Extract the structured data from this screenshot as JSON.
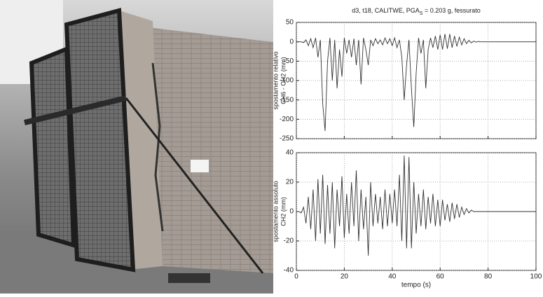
{
  "chart_data": [
    {
      "type": "line",
      "title": "d3, t18, CALITWE, PGA",
      "title_subscript": "S",
      "title_suffix": " = 0.203 g, fessurato",
      "ylabel": [
        "spostamento relativo",
        "CH6 - CH2 (mm)"
      ],
      "xlim": [
        0,
        100
      ],
      "xticks": [
        0,
        20,
        40,
        60,
        80,
        100
      ],
      "show_xtick_labels": false,
      "ylim": [
        -250,
        50
      ],
      "yticks": [
        -250,
        -200,
        -150,
        -100,
        -50,
        0,
        50
      ],
      "grid": true,
      "color": "#333333",
      "x": [
        0,
        1,
        2,
        3,
        4,
        5,
        6,
        7,
        8,
        9,
        10,
        11,
        12,
        13,
        14,
        15,
        16,
        17,
        18,
        19,
        20,
        21,
        22,
        23,
        24,
        25,
        26,
        27,
        28,
        29,
        30,
        31,
        32,
        33,
        34,
        35,
        36,
        37,
        38,
        39,
        40,
        41,
        42,
        43,
        44,
        45,
        46,
        47,
        48,
        49,
        50,
        51,
        52,
        53,
        54,
        55,
        56,
        57,
        58,
        59,
        60,
        61,
        62,
        63,
        64,
        65,
        66,
        67,
        68,
        69,
        70,
        71,
        72,
        73,
        74,
        75,
        76,
        77,
        78,
        79,
        80,
        85,
        90,
        95,
        100
      ],
      "values": [
        0,
        0,
        0,
        -2,
        5,
        -10,
        8,
        -15,
        10,
        -40,
        5,
        -160,
        -230,
        -50,
        10,
        -100,
        5,
        -120,
        -20,
        -90,
        10,
        -30,
        5,
        -40,
        8,
        -60,
        5,
        -110,
        10,
        -20,
        -60,
        5,
        -10,
        8,
        -5,
        5,
        -8,
        10,
        -5,
        8,
        -10,
        10,
        -15,
        5,
        -40,
        -150,
        -60,
        5,
        -120,
        -220,
        -80,
        10,
        -30,
        5,
        -120,
        -20,
        10,
        -15,
        15,
        -20,
        18,
        -20,
        20,
        -18,
        20,
        -15,
        15,
        -12,
        12,
        -8,
        8,
        -5,
        4,
        -3,
        2,
        -1,
        1,
        0,
        0,
        0,
        0,
        0,
        0,
        0,
        0
      ]
    },
    {
      "type": "line",
      "ylabel": [
        "spostamento assoluto",
        "CH2 (mm)"
      ],
      "xlabel": "tempo (s)",
      "xlim": [
        0,
        100
      ],
      "xticks": [
        0,
        20,
        40,
        60,
        80,
        100
      ],
      "show_xtick_labels": true,
      "ylim": [
        -40,
        40
      ],
      "yticks": [
        -40,
        -20,
        0,
        20,
        40
      ],
      "grid": true,
      "color": "#333333",
      "x": [
        0,
        1,
        2,
        3,
        4,
        5,
        6,
        7,
        8,
        9,
        10,
        11,
        12,
        13,
        14,
        15,
        16,
        17,
        18,
        19,
        20,
        21,
        22,
        23,
        24,
        25,
        26,
        27,
        28,
        29,
        30,
        31,
        32,
        33,
        34,
        35,
        36,
        37,
        38,
        39,
        40,
        41,
        42,
        43,
        44,
        45,
        46,
        47,
        48,
        49,
        50,
        51,
        52,
        53,
        54,
        55,
        56,
        57,
        58,
        59,
        60,
        61,
        62,
        63,
        64,
        65,
        66,
        67,
        68,
        69,
        70,
        71,
        72,
        73,
        74,
        75,
        80,
        85,
        90,
        95,
        100
      ],
      "values": [
        0,
        0,
        -1,
        3,
        -8,
        10,
        -12,
        15,
        -20,
        22,
        -15,
        25,
        -22,
        18,
        -15,
        20,
        -25,
        15,
        -10,
        24,
        -18,
        12,
        -15,
        20,
        -10,
        28,
        -20,
        15,
        -12,
        10,
        -30,
        20,
        -10,
        12,
        -8,
        10,
        -12,
        15,
        -10,
        12,
        -8,
        15,
        -10,
        25,
        -20,
        38,
        -25,
        37,
        -25,
        20,
        -15,
        12,
        -10,
        15,
        -12,
        10,
        -8,
        12,
        -10,
        8,
        -10,
        8,
        -6,
        5,
        -7,
        6,
        -5,
        5,
        -4,
        3,
        -2,
        2,
        -1,
        1,
        0,
        0,
        0,
        0,
        0,
        0,
        0
      ]
    }
  ]
}
